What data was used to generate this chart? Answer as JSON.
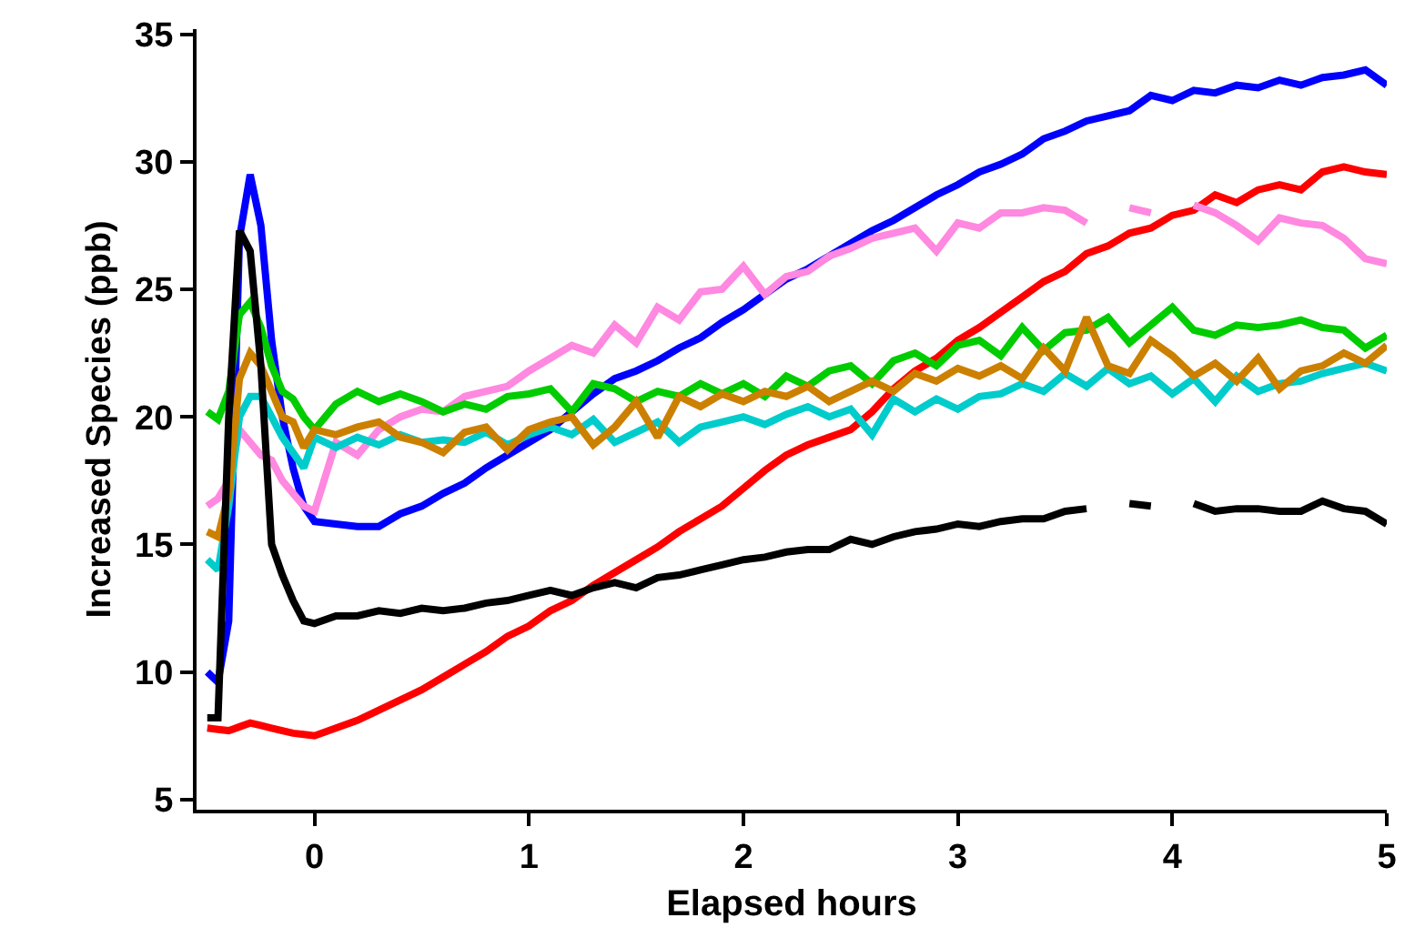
{
  "chart_data": {
    "type": "line",
    "xlabel": "Elapsed hours",
    "ylabel": "Increased Species (ppb)",
    "x": [
      -0.5,
      -0.45,
      -0.4,
      -0.35,
      -0.3,
      -0.25,
      -0.2,
      -0.15,
      -0.1,
      -0.05,
      0,
      0.1,
      0.2,
      0.3,
      0.4,
      0.5,
      0.6,
      0.7,
      0.8,
      0.9,
      1.0,
      1.1,
      1.2,
      1.3,
      1.4,
      1.5,
      1.6,
      1.7,
      1.8,
      1.9,
      2.0,
      2.1,
      2.2,
      2.3,
      2.4,
      2.5,
      2.6,
      2.7,
      2.8,
      2.9,
      3.0,
      3.1,
      3.2,
      3.3,
      3.4,
      3.5,
      3.6,
      3.7,
      3.8,
      3.9,
      4.0,
      4.1,
      4.2,
      4.3,
      4.4,
      4.5,
      4.6,
      4.7,
      4.8,
      4.9,
      5.0
    ],
    "series": [
      {
        "color": "#0000ff",
        "values": [
          10,
          9.6,
          12,
          27,
          29.5,
          27.5,
          23,
          20,
          18,
          16.5,
          15.9,
          15.8,
          15.7,
          15.7,
          16.2,
          16.5,
          17.0,
          17.4,
          18.0,
          18.5,
          19.0,
          19.5,
          20.2,
          20.9,
          21.5,
          21.8,
          22.2,
          22.7,
          23.1,
          23.7,
          24.2,
          24.8,
          25.4,
          25.8,
          26.3,
          26.8,
          27.3,
          27.7,
          28.2,
          28.7,
          29.1,
          29.6,
          29.9,
          30.3,
          30.9,
          31.2,
          31.6,
          31.8,
          32.0,
          32.6,
          32.4,
          32.8,
          32.7,
          33.0,
          32.9,
          33.2,
          33.0,
          33.3,
          33.4,
          33.6,
          33.0
        ]
      },
      {
        "color": "#ff0000",
        "values": [
          7.8,
          7.75,
          7.7,
          7.85,
          8.0,
          7.9,
          7.8,
          7.7,
          7.6,
          7.55,
          7.5,
          7.8,
          8.1,
          8.5,
          8.9,
          9.3,
          9.8,
          10.3,
          10.8,
          11.4,
          11.8,
          12.4,
          12.8,
          13.4,
          13.9,
          14.4,
          14.9,
          15.5,
          16.0,
          16.5,
          17.2,
          17.9,
          18.5,
          18.9,
          19.2,
          19.5,
          20.2,
          21.1,
          21.8,
          22.3,
          23.0,
          23.5,
          24.1,
          24.7,
          25.3,
          25.7,
          26.4,
          26.7,
          27.2,
          27.4,
          27.9,
          28.1,
          28.7,
          28.4,
          28.9,
          29.1,
          28.9,
          29.6,
          29.8,
          29.6,
          29.5
        ]
      },
      {
        "color": "#ff88e0",
        "values": [
          16.5,
          16.8,
          17.5,
          19.5,
          19.0,
          18.5,
          18.3,
          17.5,
          17.0,
          16.5,
          16.3,
          19.0,
          18.5,
          19.5,
          20.0,
          20.3,
          20.2,
          20.8,
          21.0,
          21.2,
          21.8,
          22.3,
          22.8,
          22.5,
          23.6,
          22.9,
          24.3,
          23.8,
          24.9,
          25.0,
          25.9,
          24.8,
          25.5,
          25.7,
          26.3,
          26.6,
          27.0,
          27.2,
          27.4,
          26.5,
          27.6,
          27.4,
          28.0,
          28.0,
          28.2,
          28.1,
          27.6,
          null,
          28.2,
          28.0,
          null,
          28.3,
          28.0,
          27.5,
          26.9,
          27.8,
          27.6,
          27.5,
          27.0,
          26.2,
          26.0
        ]
      },
      {
        "color": "#00cc00",
        "values": [
          20.2,
          19.9,
          21,
          24.0,
          24.5,
          23.5,
          22.0,
          21.0,
          20.7,
          20.0,
          19.5,
          20.5,
          21.0,
          20.6,
          20.9,
          20.6,
          20.2,
          20.5,
          20.3,
          20.8,
          20.9,
          21.1,
          20.2,
          21.3,
          21.1,
          20.6,
          21.0,
          20.8,
          21.3,
          20.9,
          21.3,
          20.8,
          21.6,
          21.2,
          21.8,
          22.0,
          21.3,
          22.2,
          22.5,
          22.0,
          22.8,
          23.0,
          22.4,
          23.5,
          22.6,
          23.3,
          23.4,
          23.9,
          22.9,
          23.6,
          24.3,
          23.4,
          23.2,
          23.6,
          23.5,
          23.6,
          23.8,
          23.5,
          23.4,
          22.7,
          23.2
        ]
      },
      {
        "color": "#00cccc",
        "values": [
          14.4,
          14.0,
          16.5,
          20.0,
          20.8,
          20.8,
          20.0,
          19.2,
          18.6,
          18.0,
          19.2,
          18.8,
          19.2,
          18.9,
          19.3,
          19.0,
          19.1,
          19.0,
          19.4,
          18.9,
          19.3,
          19.6,
          19.3,
          19.9,
          19.0,
          19.4,
          19.8,
          19.0,
          19.6,
          19.8,
          20.0,
          19.7,
          20.1,
          20.4,
          20.0,
          20.3,
          19.3,
          20.7,
          20.2,
          20.7,
          20.3,
          20.8,
          20.9,
          21.3,
          21.0,
          21.7,
          21.2,
          21.9,
          21.3,
          21.6,
          20.9,
          21.5,
          20.6,
          21.6,
          21.0,
          21.3,
          21.4,
          21.7,
          21.9,
          22.1,
          21.8
        ]
      },
      {
        "color": "#cc8000",
        "values": [
          15.5,
          15.3,
          17,
          21.5,
          22.5,
          22.0,
          21.0,
          20.0,
          19.8,
          18.8,
          19.5,
          19.3,
          19.6,
          19.8,
          19.2,
          19.0,
          18.6,
          19.4,
          19.6,
          18.7,
          19.5,
          19.8,
          20.0,
          18.9,
          19.6,
          20.6,
          19.2,
          20.8,
          20.4,
          20.9,
          20.6,
          21.0,
          20.8,
          21.2,
          20.6,
          21.0,
          21.4,
          21.0,
          21.7,
          21.4,
          21.9,
          21.6,
          22.0,
          21.5,
          22.7,
          21.8,
          23.9,
          22.0,
          21.7,
          23.0,
          22.4,
          21.6,
          22.1,
          21.4,
          22.3,
          21.1,
          21.8,
          22.0,
          22.5,
          22.1,
          22.8
        ]
      },
      {
        "color": "#000000",
        "values": [
          8.2,
          8.2,
          20,
          27.3,
          26.5,
          22,
          15,
          13.8,
          12.8,
          12.0,
          11.9,
          12.2,
          12.2,
          12.4,
          12.3,
          12.5,
          12.4,
          12.5,
          12.7,
          12.8,
          13.0,
          13.2,
          13.0,
          13.3,
          13.5,
          13.3,
          13.7,
          13.8,
          14.0,
          14.2,
          14.4,
          14.5,
          14.7,
          14.8,
          14.8,
          15.2,
          15.0,
          15.3,
          15.5,
          15.6,
          15.8,
          15.7,
          15.9,
          16.0,
          16.0,
          16.3,
          16.4,
          null,
          16.6,
          16.5,
          null,
          16.6,
          16.3,
          16.4,
          16.4,
          16.3,
          16.3,
          16.7,
          16.4,
          16.3,
          15.8
        ]
      }
    ],
    "xlim": [
      -0.55,
      5
    ],
    "xticks": [
      0,
      1,
      2,
      3,
      4,
      5
    ],
    "ylim": [
      4.6,
      35.2
    ],
    "yticks": [
      5,
      10,
      15,
      20,
      25,
      30,
      35
    ],
    "grid": false,
    "marker": "none",
    "line_style": "solid"
  }
}
